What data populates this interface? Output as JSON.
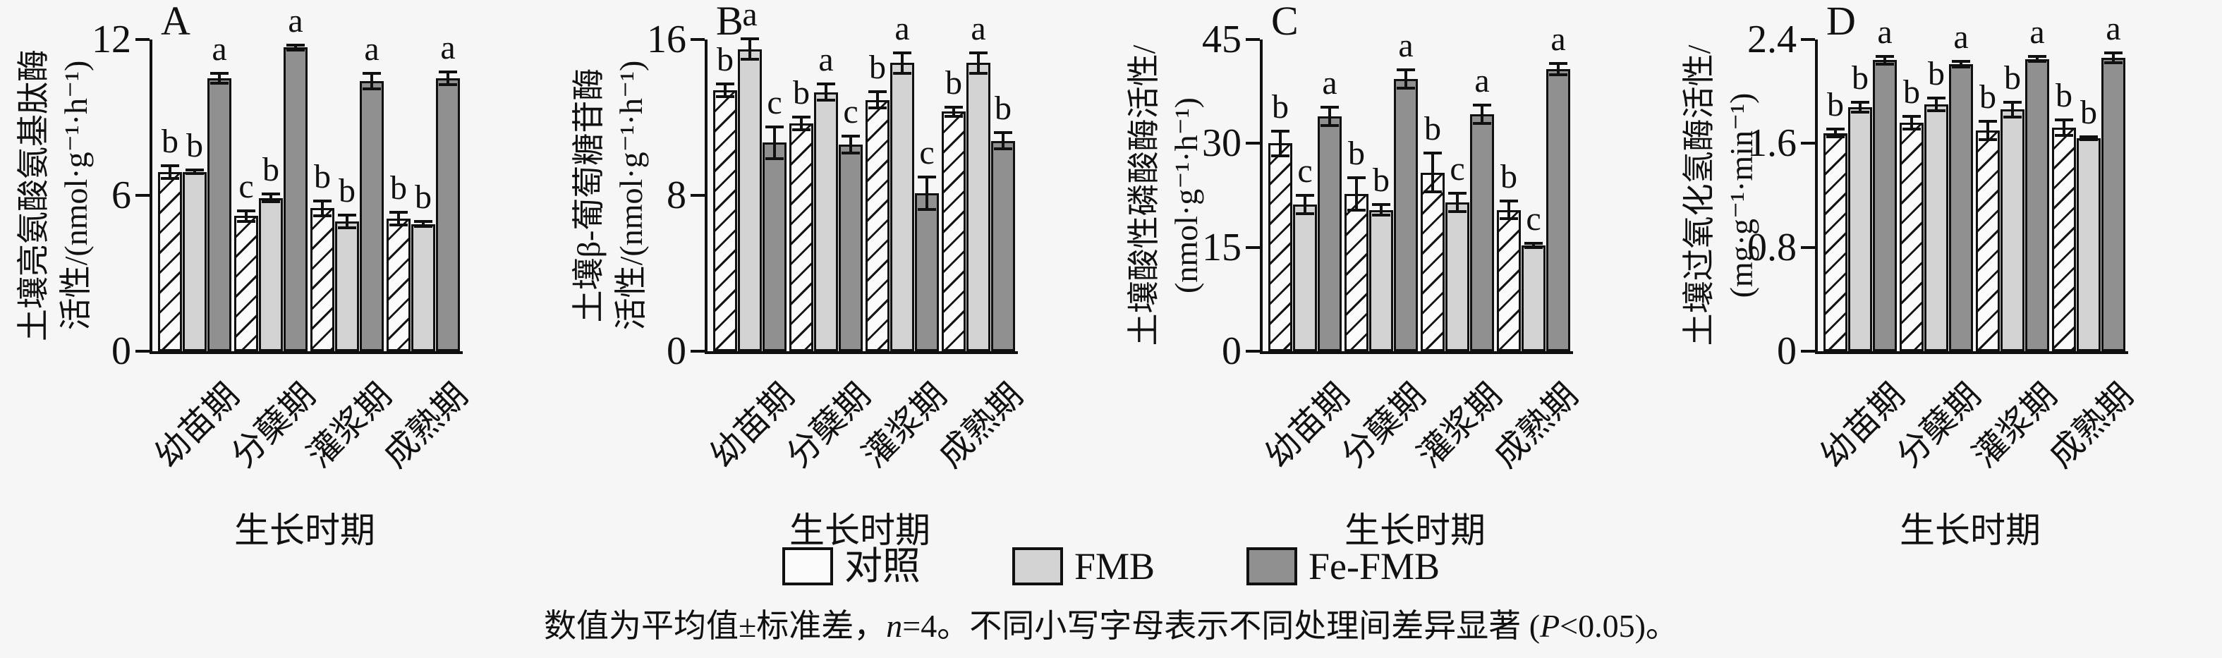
{
  "figure": {
    "background": "#f6f6f6"
  },
  "palette": {
    "control_fill": "hatch",
    "fmb_fill": "#d3d3d3",
    "fe_fmb_fill": "#909090",
    "axis_color": "#101010"
  },
  "legend": {
    "position": "bottom",
    "items": [
      {
        "label": "对照",
        "fill": "hatch"
      },
      {
        "label": "FMB",
        "fill": "#d3d3d3"
      },
      {
        "label": "Fe-FMB",
        "fill": "#909090"
      }
    ]
  },
  "caption": {
    "pre": "数值为平均值±标准差，",
    "n_italic": "n",
    "mid": "=4。不同小写字母表示不同处理间差异显著 (",
    "p_italic": "P",
    "post": "<0.05)。"
  },
  "chart_data": [
    {
      "type": "bar",
      "panel_label": "A",
      "ylabel_line1": "土壤亮氨酸氨基肽酶",
      "ylabel_line2": "活性/(nmol·g⁻¹·h⁻¹)",
      "yticks": [
        0,
        6,
        12
      ],
      "ylim": [
        0,
        12
      ],
      "grid": false,
      "categories": [
        "幼苗期",
        "分蘖期",
        "灌浆期",
        "成熟期"
      ],
      "xlabel": "生长时期",
      "series": [
        {
          "name": "对照",
          "fill": "hatch",
          "values": [
            6.9,
            5.2,
            5.5,
            5.1
          ],
          "errors": [
            0.3,
            0.25,
            0.35,
            0.3
          ],
          "letters": [
            "b",
            "c",
            "b",
            "b"
          ]
        },
        {
          "name": "FMB",
          "fill": "fmb",
          "values": [
            6.9,
            5.9,
            5.0,
            4.9
          ],
          "errors": [
            0.12,
            0.2,
            0.3,
            0.15
          ],
          "letters": [
            "b",
            "b",
            "b",
            "b"
          ]
        },
        {
          "name": "Fe-FMB",
          "fill": "fe",
          "values": [
            10.5,
            11.7,
            10.4,
            10.5
          ],
          "errors": [
            0.25,
            0.15,
            0.35,
            0.3
          ],
          "letters": [
            "a",
            "a",
            "a",
            "a"
          ]
        }
      ]
    },
    {
      "type": "bar",
      "panel_label": "B",
      "ylabel_line1": "土壤β-葡萄糖苷酶",
      "ylabel_line2": "活性/(nmol·g⁻¹·h⁻¹)",
      "yticks": [
        0,
        8,
        16
      ],
      "ylim": [
        0,
        16
      ],
      "grid": false,
      "categories": [
        "幼苗期",
        "分蘖期",
        "灌浆期",
        "成熟期"
      ],
      "xlabel": "生长时期",
      "series": [
        {
          "name": "对照",
          "fill": "hatch",
          "values": [
            13.4,
            11.7,
            12.9,
            12.3
          ],
          "errors": [
            0.4,
            0.4,
            0.5,
            0.3
          ],
          "letters": [
            "b",
            "b",
            "b",
            "b"
          ]
        },
        {
          "name": "FMB",
          "fill": "fmb",
          "values": [
            15.5,
            13.3,
            14.8,
            14.8
          ],
          "errors": [
            0.6,
            0.5,
            0.6,
            0.6
          ],
          "letters": [
            "a",
            "a",
            "a",
            "a"
          ]
        },
        {
          "name": "Fe-FMB",
          "fill": "fe",
          "values": [
            10.7,
            10.6,
            8.1,
            10.8
          ],
          "errors": [
            0.9,
            0.5,
            0.9,
            0.5
          ],
          "letters": [
            "c",
            "c",
            "c",
            "b"
          ]
        }
      ]
    },
    {
      "type": "bar",
      "panel_label": "C",
      "ylabel_line1": "土壤酸性磷酸酶活性/",
      "ylabel_line2": "(nmol·g⁻¹·h⁻¹)",
      "yticks": [
        0,
        15,
        30,
        45
      ],
      "ylim": [
        0,
        45
      ],
      "grid": false,
      "categories": [
        "幼苗期",
        "分蘖期",
        "灌浆期",
        "成熟期"
      ],
      "xlabel": "生长时期",
      "series": [
        {
          "name": "对照",
          "fill": "hatch",
          "values": [
            30.0,
            22.7,
            25.8,
            20.4
          ],
          "errors": [
            2.0,
            2.5,
            3.0,
            1.5
          ],
          "letters": [
            "b",
            "b",
            "b",
            "b"
          ]
        },
        {
          "name": "FMB",
          "fill": "fmb",
          "values": [
            21.2,
            20.4,
            21.5,
            15.3
          ],
          "errors": [
            1.5,
            1.0,
            1.5,
            0.5
          ],
          "letters": [
            "c",
            "b",
            "c",
            "c"
          ]
        },
        {
          "name": "Fe-FMB",
          "fill": "fe",
          "values": [
            33.9,
            39.3,
            34.2,
            40.7
          ],
          "errors": [
            1.5,
            1.5,
            1.5,
            1.0
          ],
          "letters": [
            "a",
            "a",
            "a",
            "a"
          ]
        }
      ]
    },
    {
      "type": "bar",
      "panel_label": "D",
      "ylabel_line1": "土壤过氧化氢酶活性/",
      "ylabel_line2": "(mg·g⁻¹·min⁻¹)",
      "yticks": [
        0,
        0.8,
        1.6,
        2.4
      ],
      "ylim": [
        0,
        2.4
      ],
      "grid": false,
      "categories": [
        "幼苗期",
        "分蘖期",
        "灌浆期",
        "成熟期"
      ],
      "xlabel": "生长时期",
      "series": [
        {
          "name": "对照",
          "fill": "hatch",
          "values": [
            1.68,
            1.76,
            1.7,
            1.72
          ],
          "errors": [
            0.04,
            0.06,
            0.08,
            0.07
          ],
          "letters": [
            "b",
            "b",
            "b",
            "b"
          ]
        },
        {
          "name": "FMB",
          "fill": "fmb",
          "values": [
            1.88,
            1.9,
            1.86,
            1.64
          ],
          "errors": [
            0.05,
            0.06,
            0.07,
            0.02
          ],
          "letters": [
            "b",
            "b",
            "b",
            "b"
          ]
        },
        {
          "name": "Fe-FMB",
          "fill": "fe",
          "values": [
            2.24,
            2.21,
            2.25,
            2.26
          ],
          "errors": [
            0.04,
            0.03,
            0.03,
            0.05
          ],
          "letters": [
            "a",
            "a",
            "a",
            "a"
          ]
        }
      ]
    }
  ]
}
